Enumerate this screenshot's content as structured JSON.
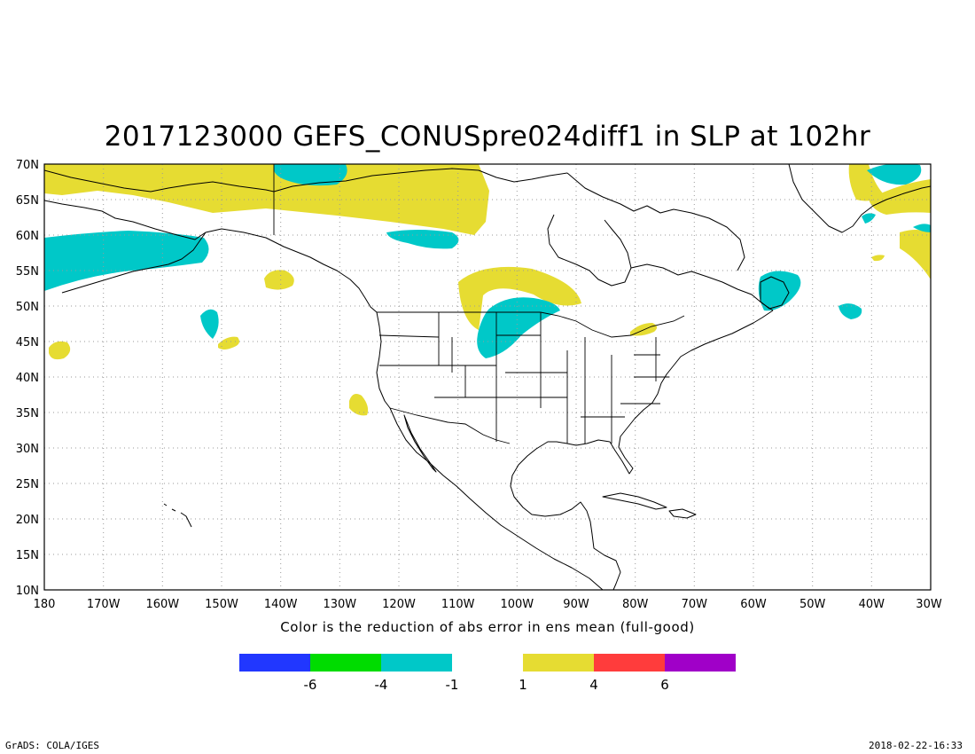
{
  "title": "2017123000 GEFS_CONUSpre024diff1 in SLP at 102hr",
  "subtitle": "Color is the reduction of abs error in ens mean (full-good)",
  "footer": {
    "credit": "GrADS: COLA/IGES",
    "timestamp": "2018-02-22-16:33"
  },
  "lat_labels": [
    "70N",
    "65N",
    "60N",
    "55N",
    "50N",
    "45N",
    "40N",
    "35N",
    "30N",
    "25N",
    "20N",
    "15N",
    "10N"
  ],
  "lon_labels": [
    "180",
    "170W",
    "160W",
    "150W",
    "140W",
    "130W",
    "120W",
    "110W",
    "100W",
    "90W",
    "80W",
    "70W",
    "60W",
    "50W",
    "40W",
    "30W"
  ],
  "colorbar": {
    "neg_colors": [
      "#2137ff",
      "#00dc00",
      "#00c8c8"
    ],
    "pos_colors": [
      "#e6dc32",
      "#ff3c3c",
      "#a000c8"
    ],
    "labels": [
      "-6",
      "-4",
      "-1",
      "1",
      "4",
      "6"
    ]
  },
  "shading_colors": {
    "positive": "#e6dc32",
    "negative": "#00c8c8"
  }
}
